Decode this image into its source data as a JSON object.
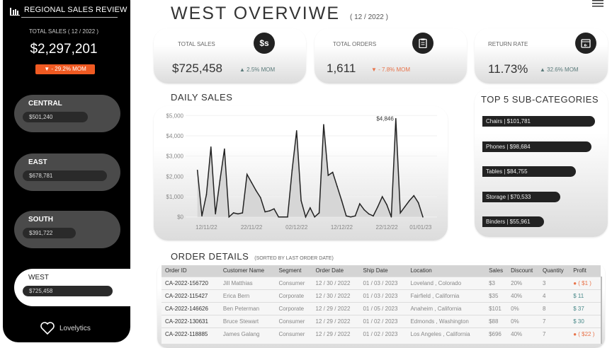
{
  "sidebar": {
    "title": "REGIONAL SALES REVIEW",
    "total_label": "TOTAL SALES ( 12 / 2022 )",
    "total_value": "$2,297,201",
    "total_mom": "▼ - 29.2%  MOM",
    "regions": [
      {
        "name": "CENTRAL",
        "value": "$501,240",
        "amount": 501240
      },
      {
        "name": "EAST",
        "value": "$678,781",
        "amount": 678781
      },
      {
        "name": "SOUTH",
        "value": "$391,722",
        "amount": 391722
      },
      {
        "name": "WEST",
        "value": "$725,458",
        "amount": 725458
      }
    ],
    "logo": "Lovelytics"
  },
  "header": {
    "title": "WEST  OVERVIWE",
    "period": "( 12 / 2022 )"
  },
  "kpis": [
    {
      "label": "TOTAL SALES",
      "value": "$725,458",
      "mom": "▲ 2.5%  MOM",
      "icon": "$s"
    },
    {
      "label": "TOTAL ORDERS",
      "value": "1,611",
      "mom": "▼ - 7.8%  MOM",
      "icon": "clipboard"
    },
    {
      "label": "RETURN RATE",
      "value": "11.73%",
      "mom": "▲ 32.6%  MOM",
      "icon": "return-box"
    }
  ],
  "daily_sales": {
    "title": "DAILY SALES"
  },
  "chart_data": {
    "type": "area",
    "title": "DAILY SALES",
    "x_start": "10/11/22",
    "values": [
      2300,
      50,
      1100,
      3450,
      150,
      1800,
      3350,
      0,
      200,
      150,
      200,
      2100,
      1700,
      1300,
      950,
      250,
      300,
      400,
      0,
      0,
      0,
      2300,
      4250,
      800,
      0,
      450,
      0,
      200,
      4550,
      2050,
      2200,
      1500,
      800,
      50,
      0,
      50,
      650,
      350,
      150,
      50,
      500,
      1000,
      600,
      0,
      4846,
      200,
      500,
      800,
      1050,
      700,
      0
    ],
    "ylim": [
      0,
      5000
    ],
    "y_ticks": [
      "$0",
      "$1,000",
      "$2,000",
      "$3,000",
      "$4,000",
      "$5,000"
    ],
    "x_ticks": [
      {
        "label": "12/11/22",
        "day_index": 2
      },
      {
        "label": "22/11/22",
        "day_index": 12
      },
      {
        "label": "02/12/22",
        "day_index": 22
      },
      {
        "label": "12/12/22",
        "day_index": 32
      },
      {
        "label": "22/12/22",
        "day_index": 42
      },
      {
        "label": "01/01/23",
        "day_index": 49.5
      }
    ],
    "annotation": "$4,846",
    "annotation_index": 44
  },
  "top5": {
    "title": "TOP 5  SUB-CATEGORIES",
    "items": [
      {
        "label": "Chairs | $101,781",
        "value": 101781
      },
      {
        "label": "Phones | $98,684",
        "value": 98684
      },
      {
        "label": "Tables | $84,755",
        "value": 84755
      },
      {
        "label": "Storage | $70,533",
        "value": 70533
      },
      {
        "label": "Binders | $55,961",
        "value": 55961
      }
    ]
  },
  "orders": {
    "title": "ORDER DETAILS",
    "subtitle": "(SORTED BY LAST ORDER DATE)",
    "columns": [
      "Order ID",
      "Customer Name",
      "Segment",
      "Order Date",
      "Ship Date",
      "Location",
      "Sales",
      "Discount",
      "Quantity",
      "Profit"
    ],
    "rows": [
      [
        "CA-2022-156720",
        "Jill Matthias",
        "Consumer",
        "12 / 30 / 2022",
        "01 / 03 / 2023",
        "Loveland ,  Colorado",
        "$3",
        "20%",
        "3",
        "● ( $1 )"
      ],
      [
        "CA-2022-115427",
        "Erica Bern",
        "Corporate",
        "12 / 30 / 2022",
        "01 / 03 / 2023",
        "Fairfield ,  California",
        "$35",
        "40%",
        "4",
        "$ 11"
      ],
      [
        "CA-2022-146626",
        "Ben Peterman",
        "Corporate",
        "12 / 29 / 2022",
        "01 / 05 / 2023",
        "Anaheim ,  California",
        "$101",
        "0%",
        "8",
        "$ 37"
      ],
      [
        "CA-2022-130631",
        "Bruce Stewart",
        "Consumer",
        "12 / 29 / 2022",
        "01 / 02 / 2023",
        "Edmonds ,  Washington",
        "$88",
        "0%",
        "7",
        "$ 30"
      ],
      [
        "CA-2022-118885",
        "James Galang",
        "Consumer",
        "12 / 29 / 2022",
        "01 / 02 / 2023",
        "Los Angeles ,  California",
        "$696",
        "40%",
        "7",
        "● ( $22 )"
      ]
    ],
    "profit_negative": [
      true,
      false,
      false,
      false,
      true
    ]
  }
}
